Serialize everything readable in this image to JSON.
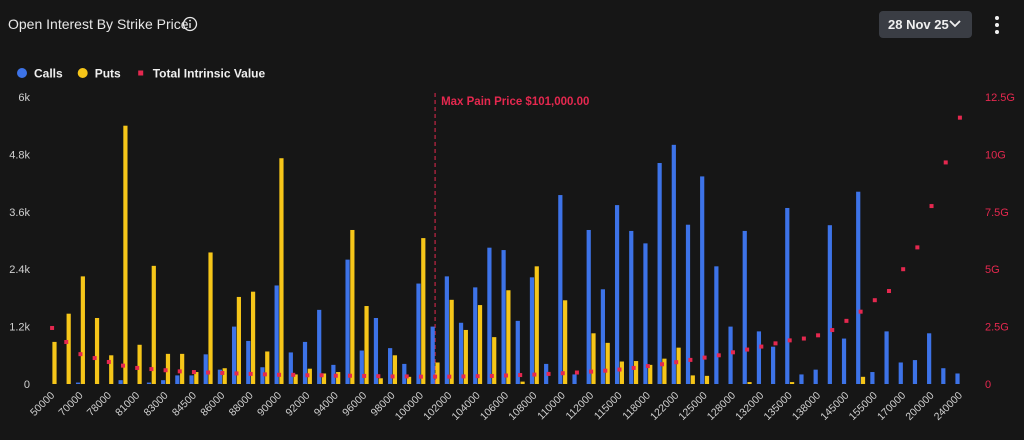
{
  "header": {
    "title": "Open Interest By Strike Price",
    "date": "28 Nov 25"
  },
  "chart_data": {
    "type": "bar",
    "categories": [
      "50000",
      null,
      "70000",
      null,
      "78000",
      null,
      "81000",
      null,
      "83000",
      null,
      "84500",
      null,
      "86000",
      null,
      "88000",
      null,
      "90000",
      null,
      "92000",
      null,
      "94000",
      null,
      "96000",
      null,
      "98000",
      null,
      "100000",
      null,
      "102000",
      null,
      "104000",
      null,
      "106000",
      null,
      "108000",
      null,
      "110000",
      null,
      "112000",
      null,
      "115000",
      null,
      "118000",
      null,
      "122000",
      null,
      "125000",
      null,
      "128000",
      null,
      "132000",
      null,
      "135000",
      null,
      "138000",
      null,
      "145000",
      null,
      "155000",
      null,
      "170000",
      null,
      "200000",
      null,
      "240000"
    ],
    "series": [
      {
        "name": "Calls",
        "color": "#3d73e8",
        "values": [
          0,
          0,
          30,
          0,
          0,
          80,
          0,
          30,
          80,
          180,
          180,
          620,
          300,
          1200,
          900,
          350,
          2060,
          660,
          880,
          1550,
          400,
          2600,
          700,
          1380,
          750,
          420,
          2100,
          1200,
          2250,
          1280,
          2020,
          2850,
          2800,
          1320,
          2230,
          420,
          3950,
          200,
          3220,
          1980,
          3740,
          3200,
          2940,
          4620,
          5000,
          3330,
          4340,
          2460,
          1200,
          3200,
          1100,
          780,
          3680,
          200,
          300,
          3320,
          950,
          4020,
          250,
          1100,
          450,
          500,
          1060,
          330,
          220
        ]
      },
      {
        "name": "Puts",
        "color": "#f6c619",
        "values": [
          880,
          1470,
          2250,
          1380,
          600,
          5400,
          820,
          2470,
          630,
          630,
          250,
          2750,
          330,
          1820,
          1930,
          680,
          4720,
          200,
          320,
          220,
          250,
          3220,
          1630,
          120,
          600,
          150,
          3050,
          450,
          1760,
          1130,
          1650,
          980,
          1960,
          50,
          2460,
          0,
          1750,
          0,
          1060,
          860,
          470,
          480,
          400,
          530,
          760,
          180,
          170,
          0,
          0,
          40,
          0,
          0,
          40,
          0,
          0,
          0,
          0,
          150,
          0,
          0,
          0,
          0,
          0,
          0,
          0
        ]
      },
      {
        "name": "Total Intrinsic Value",
        "color": "#e5284f",
        "type": "scatter",
        "axis": "y2",
        "values": [
          2.44,
          1.83,
          1.3,
          1.13,
          0.96,
          0.8,
          0.7,
          0.65,
          0.6,
          0.55,
          0.52,
          0.5,
          0.48,
          0.46,
          0.44,
          0.42,
          0.4,
          0.4,
          0.38,
          0.38,
          0.36,
          0.36,
          0.35,
          0.34,
          0.33,
          0.33,
          0.32,
          0.32,
          0.32,
          0.33,
          0.34,
          0.35,
          0.37,
          0.39,
          0.41,
          0.44,
          0.47,
          0.5,
          0.54,
          0.58,
          0.63,
          0.7,
          0.78,
          0.86,
          0.95,
          1.05,
          1.15,
          1.25,
          1.38,
          1.5,
          1.63,
          1.77,
          1.9,
          1.98,
          2.12,
          2.35,
          2.75,
          3.15,
          3.65,
          4.05,
          5.0,
          5.95,
          7.75,
          9.65,
          11.6
        ]
      }
    ],
    "ylim": [
      0,
      6000
    ],
    "yticks": [
      0,
      {
        "value": 1200,
        "label": "1.2k"
      },
      {
        "value": 2400,
        "label": "2.4k"
      },
      {
        "value": 3600,
        "label": "3.6k"
      },
      {
        "value": 4800,
        "label": "4.8k"
      },
      {
        "value": 6000,
        "label": "6k"
      }
    ],
    "y2lim": [
      0,
      12.5
    ],
    "y2ticks": [
      0,
      {
        "value": 2.5,
        "label": "2.5G"
      },
      {
        "value": 5,
        "label": "5G"
      },
      {
        "value": 7.5,
        "label": "7.5G"
      },
      {
        "value": 10,
        "label": "10G"
      },
      {
        "value": 12.5,
        "label": "12.5G"
      }
    ],
    "y2color": "#e5284f",
    "annotation": {
      "text": "Max Pain Price $101,000.00",
      "x": 101000,
      "color": "#e5284f"
    },
    "grid": false
  }
}
